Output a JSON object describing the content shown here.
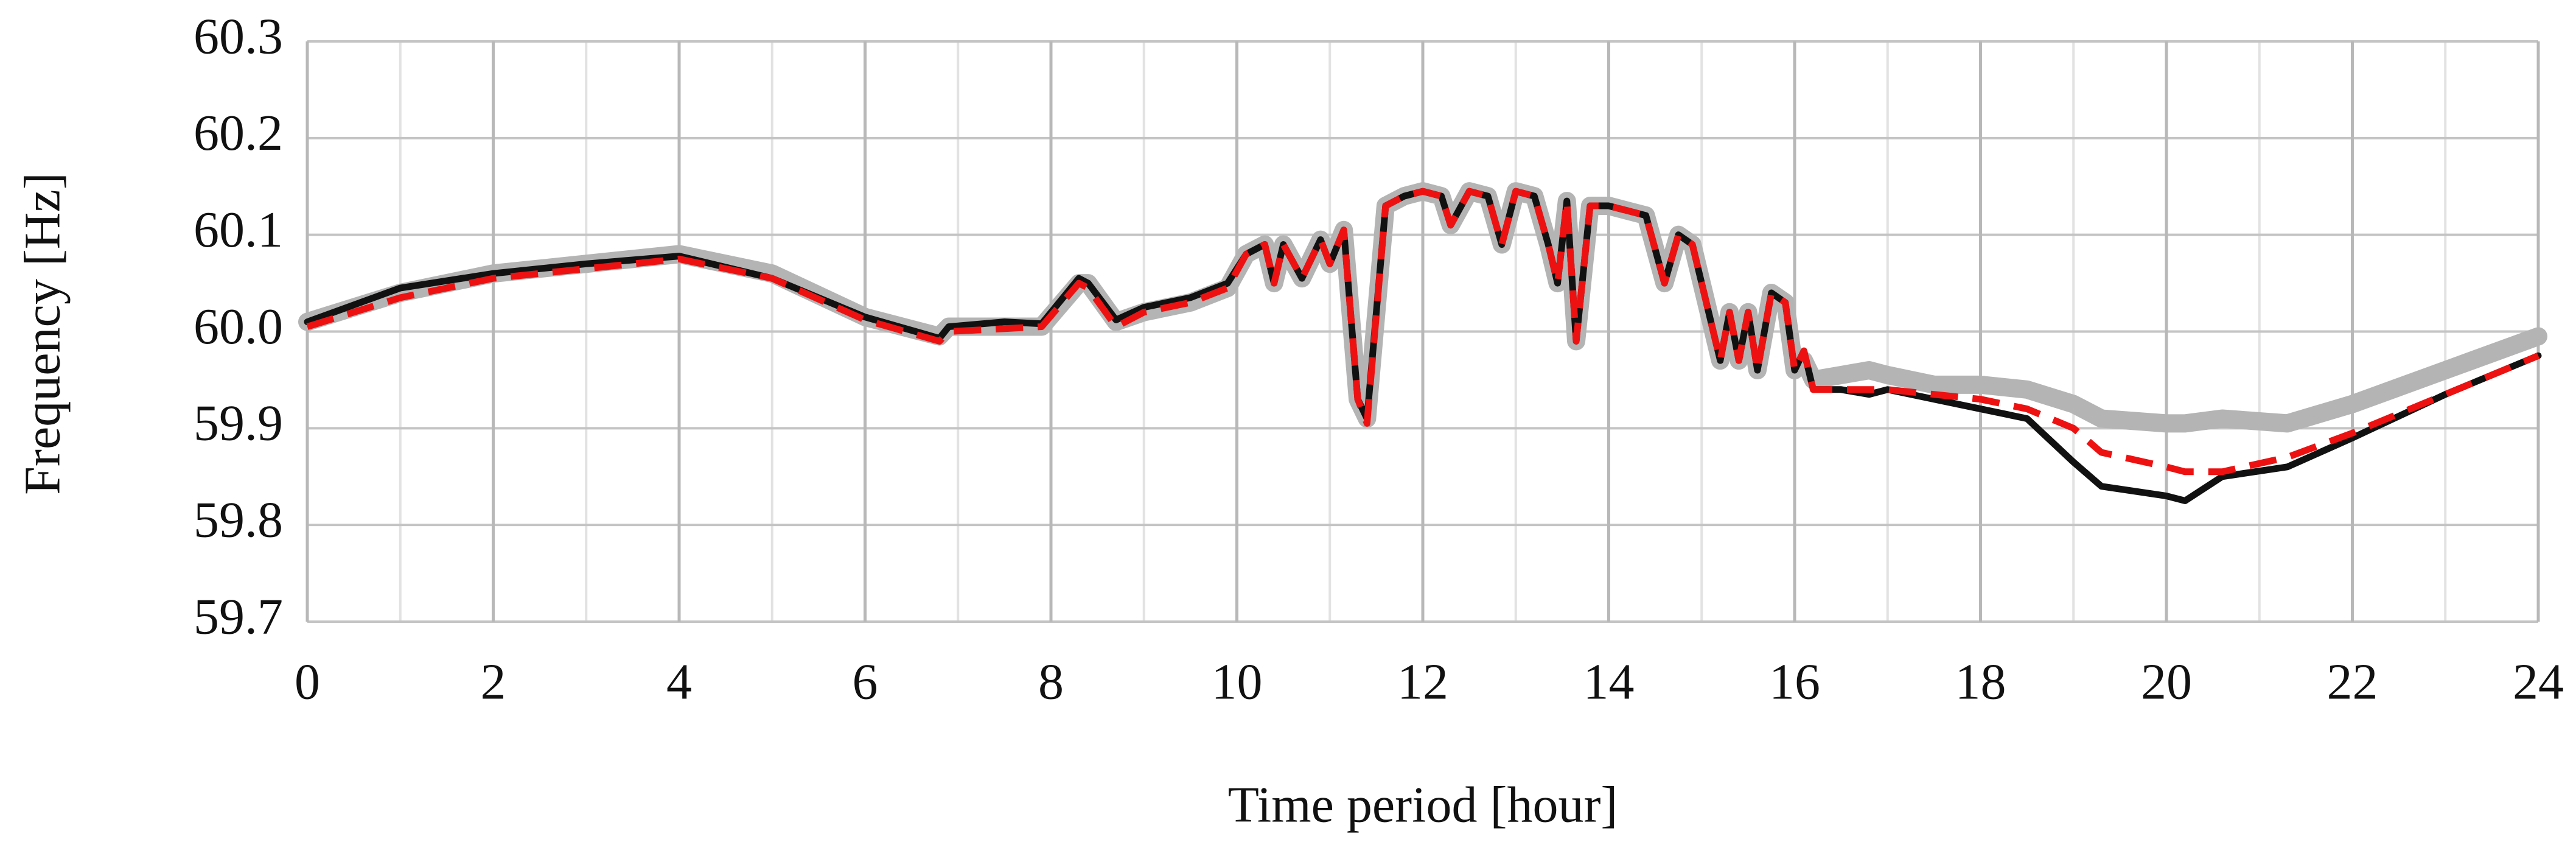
{
  "chart_data": {
    "type": "line",
    "xlabel": "Time period [hour]",
    "ylabel": "Frequency [Hz]",
    "xlim": [
      0,
      24
    ],
    "xticks": [
      0,
      2,
      4,
      6,
      8,
      10,
      12,
      14,
      16,
      18,
      20,
      22,
      24
    ],
    "xticks_minor": [
      1,
      3,
      5,
      7,
      9,
      11,
      13,
      15,
      17,
      19,
      21,
      23
    ],
    "ylim": [
      59.7,
      60.3
    ],
    "yticks": [
      {
        "value": 59.7,
        "label": "59.7"
      },
      {
        "value": 59.8,
        "label": "59.8"
      },
      {
        "value": 59.9,
        "label": "59.9"
      },
      {
        "value": 60.0,
        "label": "60.0"
      },
      {
        "value": 60.1,
        "label": "60.1"
      },
      {
        "value": 60.2,
        "label": "60.2"
      },
      {
        "value": 60.3,
        "label": "60.3"
      }
    ],
    "grid": true,
    "x": [
      0,
      1,
      2,
      3,
      4,
      5,
      6,
      6.8,
      6.9,
      7.5,
      7.9,
      8.3,
      8.4,
      8.7,
      9,
      9.5,
      9.9,
      10.1,
      10.3,
      10.4,
      10.5,
      10.7,
      10.9,
      11,
      11.15,
      11.3,
      11.4,
      11.6,
      11.8,
      12,
      12.2,
      12.3,
      12.5,
      12.7,
      12.85,
      13,
      13.2,
      13.35,
      13.45,
      13.55,
      13.65,
      13.8,
      14,
      14.2,
      14.4,
      14.6,
      14.75,
      14.9,
      15.05,
      15.2,
      15.3,
      15.4,
      15.5,
      15.6,
      15.75,
      15.9,
      16,
      16.1,
      16.2,
      16.5,
      16.8,
      17,
      17.5,
      18,
      18.5,
      19,
      19.3,
      20,
      20.2,
      20.6,
      21.3,
      22,
      23,
      24
    ],
    "series": [
      {
        "color": "#b4b4b4",
        "style": "solid",
        "width": "thick",
        "values": [
          60.01,
          60.04,
          60.06,
          60.07,
          60.08,
          60.06,
          60.015,
          59.995,
          60.005,
          60.005,
          60.005,
          60.05,
          60.05,
          60.01,
          60.02,
          60.03,
          60.045,
          60.08,
          60.09,
          60.05,
          60.09,
          60.055,
          60.095,
          60.07,
          60.105,
          59.93,
          59.91,
          60.13,
          60.14,
          60.145,
          60.14,
          60.11,
          60.145,
          60.14,
          60.09,
          60.145,
          60.14,
          60.09,
          60.05,
          60.135,
          59.99,
          60.13,
          60.13,
          60.125,
          60.12,
          60.05,
          60.1,
          60.09,
          60.03,
          59.97,
          60.02,
          59.97,
          60.02,
          59.96,
          60.04,
          60.03,
          59.96,
          59.97,
          59.95,
          59.955,
          59.96,
          59.955,
          59.945,
          59.945,
          59.94,
          59.925,
          59.91,
          59.905,
          59.905,
          59.91,
          59.905,
          59.925,
          59.96,
          59.995
        ]
      },
      {
        "color": "#111111",
        "style": "solid",
        "width": "normal",
        "values": [
          60.01,
          60.045,
          60.06,
          60.07,
          60.078,
          60.055,
          60.015,
          59.993,
          60.005,
          60.01,
          60.008,
          60.055,
          60.05,
          60.012,
          60.025,
          60.035,
          60.05,
          60.08,
          60.09,
          60.05,
          60.09,
          60.055,
          60.095,
          60.07,
          60.105,
          59.93,
          59.91,
          60.13,
          60.14,
          60.145,
          60.14,
          60.11,
          60.145,
          60.14,
          60.09,
          60.145,
          60.14,
          60.09,
          60.05,
          60.135,
          59.99,
          60.13,
          60.13,
          60.125,
          60.12,
          60.05,
          60.1,
          60.09,
          60.03,
          59.97,
          60.02,
          59.97,
          60.02,
          59.96,
          60.04,
          60.03,
          59.96,
          59.98,
          59.94,
          59.94,
          59.935,
          59.94,
          59.93,
          59.92,
          59.91,
          59.865,
          59.84,
          59.83,
          59.825,
          59.85,
          59.86,
          59.89,
          59.935,
          59.975
        ]
      },
      {
        "color": "#ee1111",
        "style": "dashed",
        "width": "normal",
        "values": [
          60.005,
          60.035,
          60.055,
          60.065,
          60.075,
          60.055,
          60.012,
          59.99,
          60.0,
          60.003,
          60.005,
          60.05,
          60.045,
          60.005,
          60.02,
          60.03,
          60.045,
          60.08,
          60.09,
          60.05,
          60.09,
          60.055,
          60.095,
          60.07,
          60.105,
          59.93,
          59.905,
          60.13,
          60.14,
          60.145,
          60.14,
          60.11,
          60.145,
          60.14,
          60.09,
          60.145,
          60.14,
          60.09,
          60.05,
          60.135,
          59.99,
          60.13,
          60.13,
          60.125,
          60.12,
          60.05,
          60.1,
          60.09,
          60.03,
          59.97,
          60.02,
          59.97,
          60.02,
          59.96,
          60.04,
          60.03,
          59.96,
          59.98,
          59.94,
          59.94,
          59.94,
          59.94,
          59.935,
          59.93,
          59.92,
          59.9,
          59.875,
          59.86,
          59.855,
          59.855,
          59.87,
          59.895,
          59.935,
          59.975
        ]
      }
    ]
  }
}
